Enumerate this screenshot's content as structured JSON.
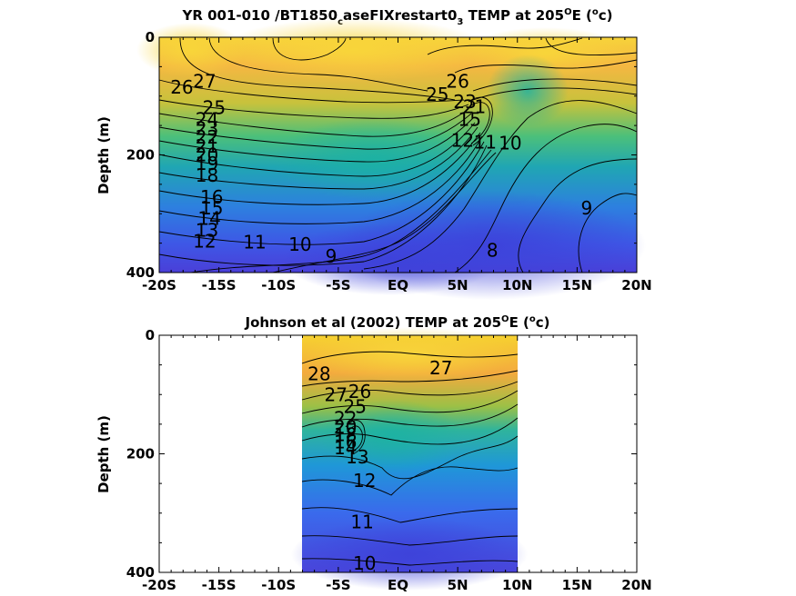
{
  "chart_data": [
    {
      "type": "heatmap",
      "title": "YR 001-010 /BT1850_caseFIXrestart0_3 TEMP at 205°E (°c)",
      "title_parts": {
        "a": "YR 001-010 /BT1850",
        "b": "c",
        "c": "aseFIXrestart0",
        "d": "3",
        "e": " TEMP at 205",
        "f": "O",
        "g": "E (",
        "h": "o",
        "i": "c)"
      },
      "ylabel": "Depth (m)",
      "xlim": [
        -20,
        20
      ],
      "ylim": [
        400,
        0
      ],
      "xticks": [
        -20,
        -15,
        -10,
        -5,
        0,
        5,
        10,
        15,
        20
      ],
      "xtick_labels": [
        "-20S",
        "-15S",
        "-10S",
        "-5S",
        "EQ",
        "5N",
        "10N",
        "15N",
        "20N"
      ],
      "yticks": [
        0,
        200,
        400
      ],
      "ytick_labels": [
        "0",
        "200",
        "400"
      ],
      "data_extent": [
        -20,
        20
      ],
      "contour_labels": [
        {
          "text": "27",
          "x": -16.2,
          "y": 75
        },
        {
          "text": "26",
          "x": -18.1,
          "y": 85
        },
        {
          "text": "25",
          "x": -15.4,
          "y": 120
        },
        {
          "text": "24",
          "x": -16.0,
          "y": 140
        },
        {
          "text": "23",
          "x": -16.0,
          "y": 155
        },
        {
          "text": "22",
          "x": -16.0,
          "y": 170
        },
        {
          "text": "21",
          "x": -16.0,
          "y": 185
        },
        {
          "text": "20",
          "x": -16.0,
          "y": 200
        },
        {
          "text": "19",
          "x": -16.0,
          "y": 215
        },
        {
          "text": "18",
          "x": -16.0,
          "y": 235
        },
        {
          "text": "16",
          "x": -15.6,
          "y": 272
        },
        {
          "text": "15",
          "x": -15.6,
          "y": 290
        },
        {
          "text": "14",
          "x": -15.8,
          "y": 308
        },
        {
          "text": "13",
          "x": -16.0,
          "y": 328
        },
        {
          "text": "12",
          "x": -16.2,
          "y": 347
        },
        {
          "text": "11",
          "x": -12.0,
          "y": 348
        },
        {
          "text": "10",
          "x": -8.2,
          "y": 352
        },
        {
          "text": "9",
          "x": -5.6,
          "y": 372
        },
        {
          "text": "26",
          "x": 5.0,
          "y": 75
        },
        {
          "text": "25",
          "x": 3.3,
          "y": 97
        },
        {
          "text": "23",
          "x": 5.6,
          "y": 110
        },
        {
          "text": "21",
          "x": 6.4,
          "y": 118
        },
        {
          "text": "15",
          "x": 6.0,
          "y": 140
        },
        {
          "text": "12",
          "x": 5.4,
          "y": 175
        },
        {
          "text": "11",
          "x": 7.3,
          "y": 178
        },
        {
          "text": "10",
          "x": 9.4,
          "y": 180
        },
        {
          "text": "9",
          "x": 15.8,
          "y": 290
        },
        {
          "text": "8",
          "x": 7.9,
          "y": 362
        }
      ]
    },
    {
      "type": "heatmap",
      "title": "Johnson et al (2002) TEMP at 205°E (°c)",
      "title_parts": {
        "a": "Johnson et al (2002) TEMP at 205",
        "f": "O",
        "g": "E (",
        "h": "o",
        "i": "c)"
      },
      "ylabel": "Depth (m)",
      "xlim": [
        -20,
        20
      ],
      "ylim": [
        400,
        0
      ],
      "xticks": [
        -20,
        -15,
        -10,
        -5,
        0,
        5,
        10,
        15,
        20
      ],
      "xtick_labels": [
        "-20S",
        "-15S",
        "-10S",
        "-5S",
        "EQ",
        "5N",
        "10N",
        "15N",
        "20N"
      ],
      "yticks": [
        0,
        200,
        400
      ],
      "ytick_labels": [
        "0",
        "200",
        "400"
      ],
      "data_extent": [
        -8,
        10
      ],
      "contour_labels": [
        {
          "text": "28",
          "x": -6.6,
          "y": 65
        },
        {
          "text": "27",
          "x": -5.2,
          "y": 100
        },
        {
          "text": "27",
          "x": 3.6,
          "y": 55
        },
        {
          "text": "26",
          "x": -3.2,
          "y": 95
        },
        {
          "text": "25",
          "x": -3.6,
          "y": 120
        },
        {
          "text": "22",
          "x": -4.4,
          "y": 140
        },
        {
          "text": "20",
          "x": -4.4,
          "y": 155
        },
        {
          "text": "18",
          "x": -4.4,
          "y": 168
        },
        {
          "text": "16",
          "x": -4.4,
          "y": 180
        },
        {
          "text": "14",
          "x": -4.4,
          "y": 190
        },
        {
          "text": "13",
          "x": -3.4,
          "y": 205
        },
        {
          "text": "12",
          "x": -2.8,
          "y": 245
        },
        {
          "text": "11",
          "x": -3.0,
          "y": 315
        },
        {
          "text": "10",
          "x": -2.8,
          "y": 385
        }
      ]
    }
  ],
  "colors": {
    "warm": "#f2d22c",
    "mid": "#2cb4a0",
    "cold": "#4a3fd8",
    "frame": "#000000"
  }
}
